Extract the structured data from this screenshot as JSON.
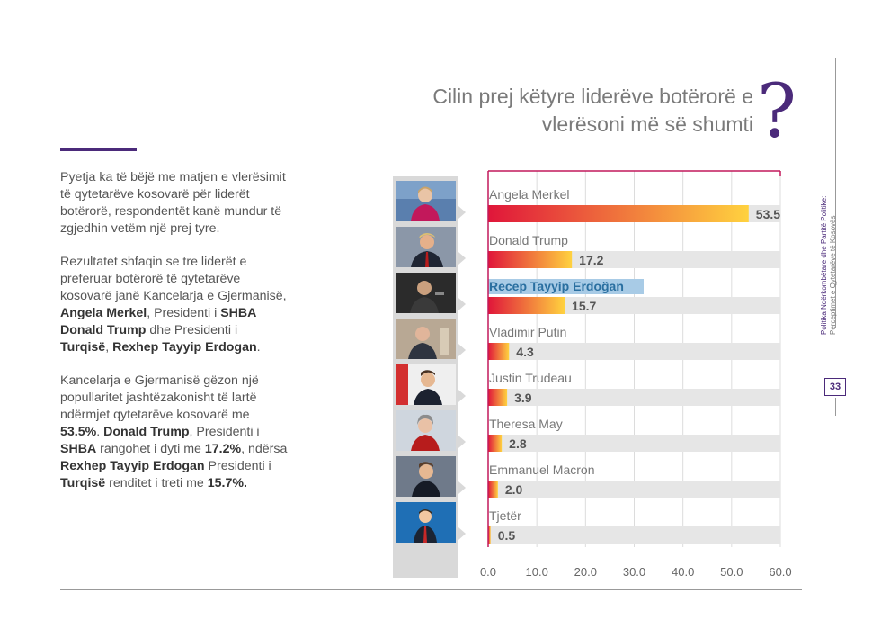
{
  "page": {
    "question_line1": "Cilin prej këtyre liderëve botërorë e",
    "question_line2": "vlerësoni më së shumti",
    "question_mark": "?",
    "page_number": "33",
    "side_title": "Politika Ndërkombëtare dhe Partitë Politike:",
    "side_subtitle": "Perceptimet e Qytetarëve të Kosovës"
  },
  "text": {
    "p1": "Pyetja ka të bëjë me matjen e vlerësimit të qytetarëve kosovarë për liderët botërorë, respondentët kanë mundur të zgjedhin vetëm një prej tyre.",
    "p2_a": "Rezultatet shfaqin se tre liderët e preferuar botërorë të qytetarëve kosovarë janë Kancelarja e Gjermanisë, ",
    "p2_b": "Angela Merkel",
    "p2_c": ", Presidenti i ",
    "p2_d": "SHBA Donald Trump",
    "p2_e": " dhe Presidenti i ",
    "p2_f": "Turqisë",
    "p2_g": ", ",
    "p2_h": "Rexhep Tayyip Erdogan",
    "p2_i": ".",
    "p3_a": "Kancelarja e Gjermanisë gëzon një popullaritet jashtëzakonisht të lartë ndërmjet qytetarëve kosovarë me ",
    "p3_b": "53.5%",
    "p3_c": ". ",
    "p3_d": "Donald Trump",
    "p3_e": ", Presidenti i ",
    "p3_f": "SHBA",
    "p3_g": " rangohet i dyti me ",
    "p3_h": "17.2%",
    "p3_i": ", ndërsa ",
    "p3_j": "Rexhep Tayyip Erdogan",
    "p3_k": " Presidenti i ",
    "p3_l": "Turqisë",
    "p3_m": " renditet i treti me ",
    "p3_n": "15.7%."
  },
  "chart_data": {
    "type": "bar",
    "orientation": "horizontal",
    "categories": [
      "Angela Merkel",
      "Donald Trump",
      "Recep Tayyip Erdoğan",
      "Vladimir Putin",
      "Justin Trudeau",
      "Theresa May",
      "Emmanuel Macron",
      "Tjetër"
    ],
    "values": [
      53.5,
      17.2,
      15.7,
      4.3,
      3.9,
      2.8,
      2.0,
      0.5
    ],
    "value_labels": [
      "53.5",
      "17.2",
      "15.7",
      "4.3",
      "3.9",
      "2.8",
      "2.0",
      "0.5"
    ],
    "highlighted": [
      false,
      false,
      true,
      false,
      false,
      false,
      false,
      false
    ],
    "xlim": [
      0,
      60
    ],
    "xticks": [
      "0.0",
      "10.0",
      "20.0",
      "30.0",
      "40.0",
      "50.0",
      "60.0"
    ],
    "grid": true,
    "colors": {
      "bar_start": "#e0163a",
      "bar_end": "#ffd23f",
      "track": "#e6e6e6",
      "frame": "#c2185b",
      "highlight": "#a8cbe6",
      "highlight_text": "#2a6fa0"
    }
  }
}
